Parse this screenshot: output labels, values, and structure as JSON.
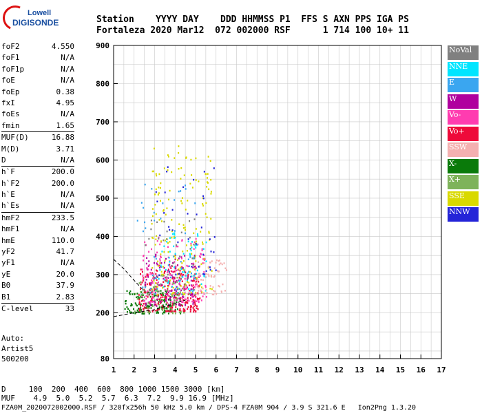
{
  "header": {
    "line1": "Station    YYYY DAY    DDD HHMMSS P1  FFS S AXN PPS IGA PS",
    "line2": "Fortaleza 2020 Mar12  072 002000 RSF      1 714 100 10+ 11"
  },
  "logo": {
    "line1": "Lowell",
    "line2": "DIGISONDE"
  },
  "params": [
    [
      {
        "k": "foF2",
        "v": "4.550"
      },
      {
        "k": "foF1",
        "v": "N/A"
      },
      {
        "k": "foF1p",
        "v": "N/A"
      },
      {
        "k": "foE",
        "v": "N/A"
      },
      {
        "k": "foEp",
        "v": "0.38"
      },
      {
        "k": "fxI",
        "v": "4.95"
      },
      {
        "k": "foEs",
        "v": "N/A"
      },
      {
        "k": "fmin",
        "v": "1.65"
      }
    ],
    [
      {
        "k": "MUF(D)",
        "v": "16.88"
      },
      {
        "k": "M(D)",
        "v": "3.71"
      },
      {
        "k": "D",
        "v": "N/A"
      }
    ],
    [
      {
        "k": "h`F",
        "v": "200.0"
      },
      {
        "k": "h`F2",
        "v": "200.0"
      },
      {
        "k": "h`E",
        "v": "N/A"
      },
      {
        "k": "h`Es",
        "v": "N/A"
      }
    ],
    [
      {
        "k": "hmF2",
        "v": "233.5"
      },
      {
        "k": "hmF1",
        "v": "N/A"
      },
      {
        "k": "hmE",
        "v": "110.0"
      },
      {
        "k": "yF2",
        "v": "41.7"
      },
      {
        "k": "yF1",
        "v": "N/A"
      },
      {
        "k": "yE",
        "v": "20.0"
      },
      {
        "k": "B0",
        "v": "37.9"
      },
      {
        "k": "B1",
        "v": "2.83"
      }
    ],
    [
      {
        "k": "C-level",
        "v": "33"
      }
    ]
  ],
  "auto": {
    "line1": "Auto:",
    "line2": "Artist5",
    "line3": "500200"
  },
  "legend": [
    {
      "label": "NoVal",
      "color": "#808080"
    },
    {
      "label": "NNE",
      "color": "#00e5ff"
    },
    {
      "label": "E",
      "color": "#3aa6f0"
    },
    {
      "label": "W",
      "color": "#b0009e"
    },
    {
      "label": "Vo-",
      "color": "#ff3cb0"
    },
    {
      "label": "Vo+",
      "color": "#ee0a3a"
    },
    {
      "label": "SSW",
      "color": "#f4b0b0"
    },
    {
      "label": "X-",
      "color": "#0a7a0a"
    },
    {
      "label": "X+",
      "color": "#7eb35a"
    },
    {
      "label": "SSE",
      "color": "#d9d900"
    },
    {
      "label": "NNW",
      "color": "#2424d8"
    }
  ],
  "bottom": {
    "row1": "D     100  200  400  600  800 1000 1500 3000 [km]",
    "row2": "MUF    4.9  5.0  5.2  5.7  6.3  7.2  9.9 16.9 [MHz]",
    "footer": "FZA0M_2020072002000.RSF / 320fx256h 50 kHz 5.0 km / DPS-4 FZA0M 904 / 3.9 S 321.6 E   Ion2Png 1.3.20"
  },
  "chart_data": {
    "type": "scatter",
    "xlim": [
      1,
      17
    ],
    "ylim": [
      80,
      900
    ],
    "xticks": [
      1,
      2,
      3,
      4,
      5,
      6,
      7,
      8,
      9,
      10,
      11,
      12,
      13,
      14,
      15,
      16,
      17
    ],
    "yticks": [
      80,
      200,
      300,
      400,
      500,
      600,
      700,
      800,
      900
    ],
    "xlabel": "",
    "ylabel": "",
    "grid": true,
    "clusters": [
      {
        "name": "X-",
        "xr": [
          1.5,
          4.3
        ],
        "yr": [
          200,
          260
        ],
        "n": 160
      },
      {
        "name": "Vo+",
        "xr": [
          2.2,
          5.2
        ],
        "yr": [
          205,
          330
        ],
        "n": 260
      },
      {
        "name": "W",
        "xr": [
          2.5,
          5.0
        ],
        "yr": [
          220,
          360
        ],
        "n": 120
      },
      {
        "name": "Vo-",
        "xr": [
          2.3,
          5.5
        ],
        "yr": [
          230,
          400
        ],
        "n": 150
      },
      {
        "name": "NNE",
        "xr": [
          3.0,
          5.5
        ],
        "yr": [
          260,
          430
        ],
        "n": 70
      },
      {
        "name": "E",
        "xr": [
          2.0,
          5.0
        ],
        "yr": [
          250,
          540
        ],
        "n": 50
      },
      {
        "name": "SSE",
        "xr": [
          2.8,
          5.8
        ],
        "yr": [
          250,
          640
        ],
        "n": 170
      },
      {
        "name": "X+",
        "xr": [
          2.0,
          4.5
        ],
        "yr": [
          200,
          300
        ],
        "n": 60
      },
      {
        "name": "SSW",
        "xr": [
          5.0,
          6.5
        ],
        "yr": [
          250,
          340
        ],
        "n": 60
      },
      {
        "name": "NNW",
        "xr": [
          3.0,
          6.0
        ],
        "yr": [
          300,
          600
        ],
        "n": 40
      },
      {
        "name": "NoVal",
        "xr": [
          2.5,
          5.0
        ],
        "yr": [
          250,
          450
        ],
        "n": 40
      }
    ],
    "curves": [
      {
        "name": "hmF2-profile",
        "x": [
          1.0,
          2.0,
          3.0,
          4.0,
          4.5
        ],
        "y": [
          190,
          200,
          208,
          225,
          233
        ]
      },
      {
        "name": "upper-branch",
        "x": [
          1.0,
          1.5,
          2.0,
          2.4
        ],
        "y": [
          340,
          315,
          285,
          262
        ]
      }
    ]
  }
}
